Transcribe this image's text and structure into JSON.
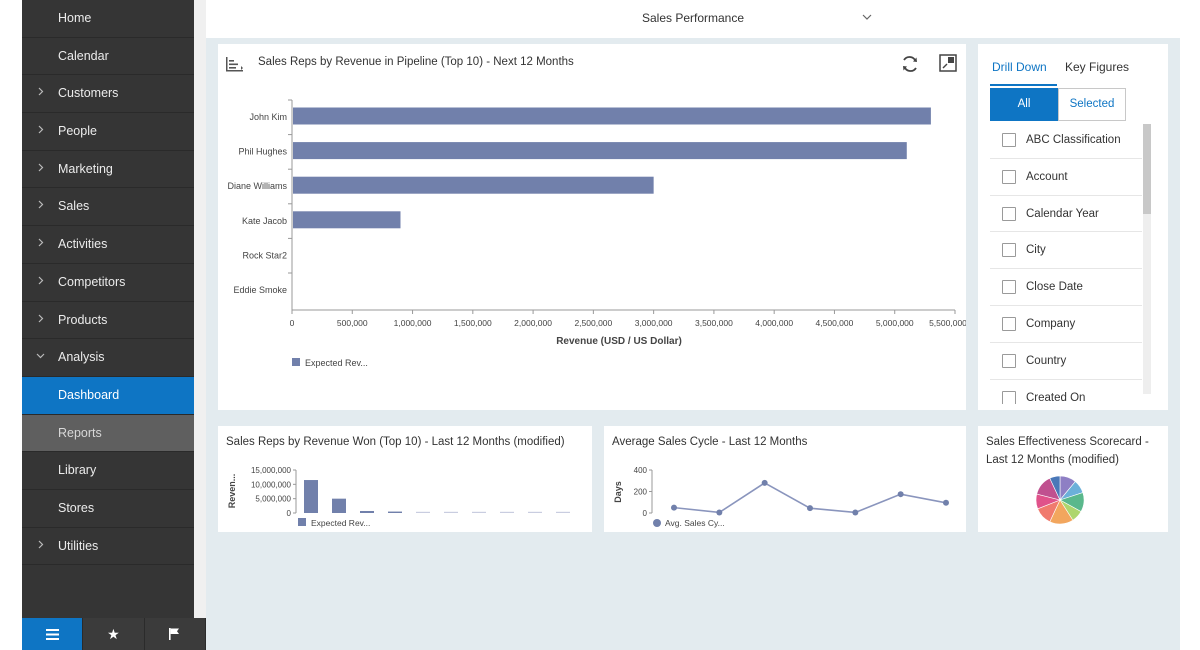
{
  "sidebar": {
    "items": [
      {
        "label": "Home",
        "chevron": "",
        "state": ""
      },
      {
        "label": "Calendar",
        "chevron": "",
        "state": ""
      },
      {
        "label": "Customers",
        "chevron": ">",
        "state": ""
      },
      {
        "label": "People",
        "chevron": ">",
        "state": ""
      },
      {
        "label": "Marketing",
        "chevron": ">",
        "state": ""
      },
      {
        "label": "Sales",
        "chevron": ">",
        "state": ""
      },
      {
        "label": "Activities",
        "chevron": ">",
        "state": ""
      },
      {
        "label": "Competitors",
        "chevron": ">",
        "state": ""
      },
      {
        "label": "Products",
        "chevron": ">",
        "state": ""
      },
      {
        "label": "Analysis",
        "chevron": "v",
        "state": ""
      },
      {
        "label": "Dashboard",
        "chevron": "",
        "state": "active"
      },
      {
        "label": "Reports",
        "chevron": "",
        "state": "sub"
      },
      {
        "label": "Library",
        "chevron": "",
        "state": ""
      },
      {
        "label": "Stores",
        "chevron": "",
        "state": ""
      },
      {
        "label": "Utilities",
        "chevron": ">",
        "state": ""
      }
    ],
    "footer_icons": [
      "menu-icon",
      "star-icon",
      "flag-icon"
    ]
  },
  "topbar": {
    "title": "Sales Performance"
  },
  "main_chart": {
    "title": "Sales Reps by Revenue in Pipeline (Top 10) - Next 12 Months",
    "icons": [
      "chart-type-icon",
      "refresh-icon",
      "maximize-icon"
    ]
  },
  "side_panel": {
    "tab_drill": "Drill Down",
    "tab_key": "Key Figures",
    "seg_all": "All",
    "seg_selected": "Selected",
    "filters": [
      "ABC Classification",
      "Account",
      "Calendar Year",
      "City",
      "Close Date",
      "Company",
      "Country",
      "Created On"
    ]
  },
  "won_card": {
    "title": "Sales Reps by Revenue Won (Top 10) - Last 12 Months (modified)"
  },
  "cycle_card": {
    "title": "Average Sales Cycle - Last 12 Months"
  },
  "score_card": {
    "title_line1": "Sales Effectiveness Scorecard -",
    "title_line2": "Last 12 Months (modified)"
  },
  "colors": {
    "accent": "#0e75c4",
    "bar": "#7180ab",
    "sidebar_bg": "#353535"
  },
  "chart_data": [
    {
      "type": "bar",
      "orientation": "horizontal",
      "title": "Sales Reps by Revenue in Pipeline (Top 10) - Next 12 Months",
      "categories": [
        "John Kim",
        "Phil Hughes",
        "Diane Williams",
        "Kate Jacob",
        "Rock Star2",
        "Eddie Smoke"
      ],
      "series": [
        {
          "name": "Expected Rev...",
          "values": [
            5300000,
            5100000,
            3000000,
            900000,
            0,
            0
          ]
        }
      ],
      "xlabel": "Revenue (USD / US Dollar)",
      "xlim": [
        0,
        5500000
      ],
      "xticks": [
        "0",
        "500,000",
        "1,000,000",
        "1,500,000",
        "2,000,000",
        "2,500,000",
        "3,000,000",
        "3,500,000",
        "4,000,000",
        "4,500,000",
        "5,000,000",
        "5,500,000"
      ],
      "legend": "bottom-left"
    },
    {
      "type": "bar",
      "title": "Sales Reps by Revenue Won (Top 10) - Last 12 Months (modified)",
      "ylabel": "Reven...",
      "ylim": [
        0,
        15000000
      ],
      "yticks": [
        "15,000,000",
        "10,000,000",
        "5,000,000",
        "0"
      ],
      "series": [
        {
          "name": "Expected Rev...",
          "values": [
            11500000,
            5000000,
            700000,
            500000,
            0,
            0,
            0,
            0,
            0,
            0
          ]
        }
      ],
      "legend": "bottom"
    },
    {
      "type": "line",
      "title": "Average Sales Cycle - Last 12 Months",
      "ylabel": "Days",
      "ylim": [
        0,
        400
      ],
      "yticks": [
        "400",
        "200",
        "0"
      ],
      "series": [
        {
          "name": "Avg. Sales Cy...",
          "values": [
            50,
            5,
            280,
            45,
            5,
            175,
            95
          ]
        }
      ],
      "legend": "bottom"
    },
    {
      "type": "pie",
      "title": "Sales Effectiveness Scorecard - Last 12 Months (modified)",
      "values": [
        11,
        9,
        13,
        8,
        16,
        12,
        10,
        14,
        7
      ],
      "colors": [
        "#8e7fc4",
        "#6bb0d9",
        "#5ab88c",
        "#aed66d",
        "#f2a65e",
        "#f07a6e",
        "#e0528a",
        "#c0508f",
        "#4a78b8"
      ]
    }
  ]
}
